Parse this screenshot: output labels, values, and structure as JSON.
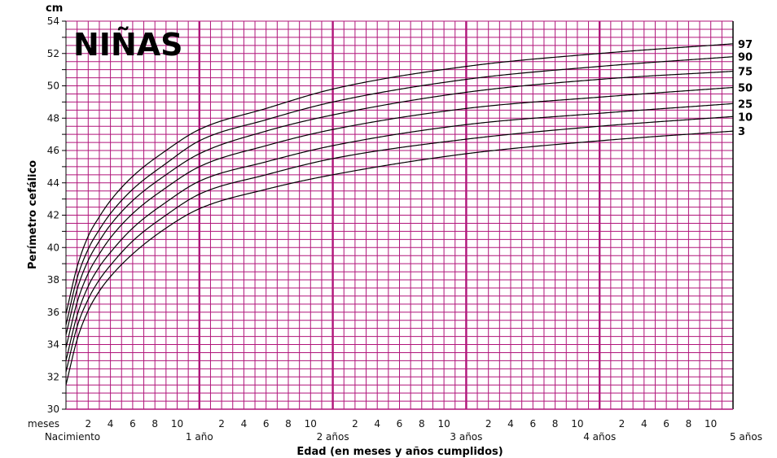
{
  "chart_data": {
    "type": "line",
    "title": "NIÑAS",
    "y_unit": "cm",
    "ylabel": "Perímetro cefálico",
    "xlabel": "Edad (en meses y años cumplidos)",
    "ylim": [
      30,
      54
    ],
    "xlim": [
      0,
      60
    ],
    "y_ticks": [
      30,
      32,
      34,
      36,
      38,
      40,
      42,
      44,
      46,
      48,
      50,
      52,
      54
    ],
    "x_month_tick_values": [
      2,
      4,
      6,
      8,
      10,
      14,
      16,
      18,
      20,
      22,
      26,
      28,
      30,
      32,
      34,
      38,
      40,
      42,
      44,
      46,
      50,
      52,
      54,
      56,
      58
    ],
    "x_month_tick_labels": [
      "2",
      "4",
      "6",
      "8",
      "10",
      "2",
      "4",
      "6",
      "8",
      "10",
      "2",
      "4",
      "6",
      "8",
      "10",
      "2",
      "4",
      "6",
      "8",
      "10",
      "2",
      "4",
      "6",
      "8",
      "10"
    ],
    "x_month_row_label": "meses",
    "x_year_ticks": [
      {
        "x": 0,
        "label": "Nacimiento"
      },
      {
        "x": 12,
        "label": "1 año"
      },
      {
        "x": 24,
        "label": "2 años"
      },
      {
        "x": 36,
        "label": "3 años"
      },
      {
        "x": 48,
        "label": "4 años"
      },
      {
        "x": 60,
        "label": "5 años"
      }
    ],
    "grid": true,
    "legend": "right-end labels",
    "colors": {
      "grid": "#b0157a",
      "curves": "#000000"
    },
    "x": [
      0,
      1,
      2,
      3,
      4,
      6,
      9,
      12,
      18,
      24,
      36,
      48,
      60
    ],
    "series": [
      {
        "name": "97",
        "values": [
          35.9,
          38.8,
          40.7,
          41.9,
          42.9,
          44.4,
          46.0,
          47.3,
          48.6,
          49.8,
          51.2,
          52.0,
          52.6
        ]
      },
      {
        "name": "90",
        "values": [
          35.2,
          38.1,
          39.9,
          41.1,
          42.1,
          43.6,
          45.2,
          46.6,
          47.9,
          49.0,
          50.4,
          51.2,
          51.8
        ]
      },
      {
        "name": "75",
        "values": [
          34.6,
          37.4,
          39.2,
          40.4,
          41.4,
          42.9,
          44.5,
          45.8,
          47.2,
          48.2,
          49.6,
          50.4,
          50.9
        ]
      },
      {
        "name": "50",
        "values": [
          33.8,
          36.6,
          38.4,
          39.6,
          40.6,
          42.1,
          43.7,
          45.0,
          46.3,
          47.3,
          48.6,
          49.3,
          49.9
        ]
      },
      {
        "name": "25",
        "values": [
          33.0,
          35.8,
          37.6,
          38.8,
          39.7,
          41.2,
          42.8,
          44.1,
          45.3,
          46.3,
          47.6,
          48.3,
          48.9
        ]
      },
      {
        "name": "10",
        "values": [
          32.3,
          35.1,
          36.8,
          38.0,
          38.9,
          40.4,
          42.0,
          43.3,
          44.5,
          45.5,
          46.7,
          47.5,
          48.1
        ]
      },
      {
        "name": "3",
        "values": [
          31.5,
          34.3,
          36.1,
          37.3,
          38.2,
          39.6,
          41.2,
          42.4,
          43.6,
          44.5,
          45.8,
          46.6,
          47.2
        ]
      }
    ]
  }
}
